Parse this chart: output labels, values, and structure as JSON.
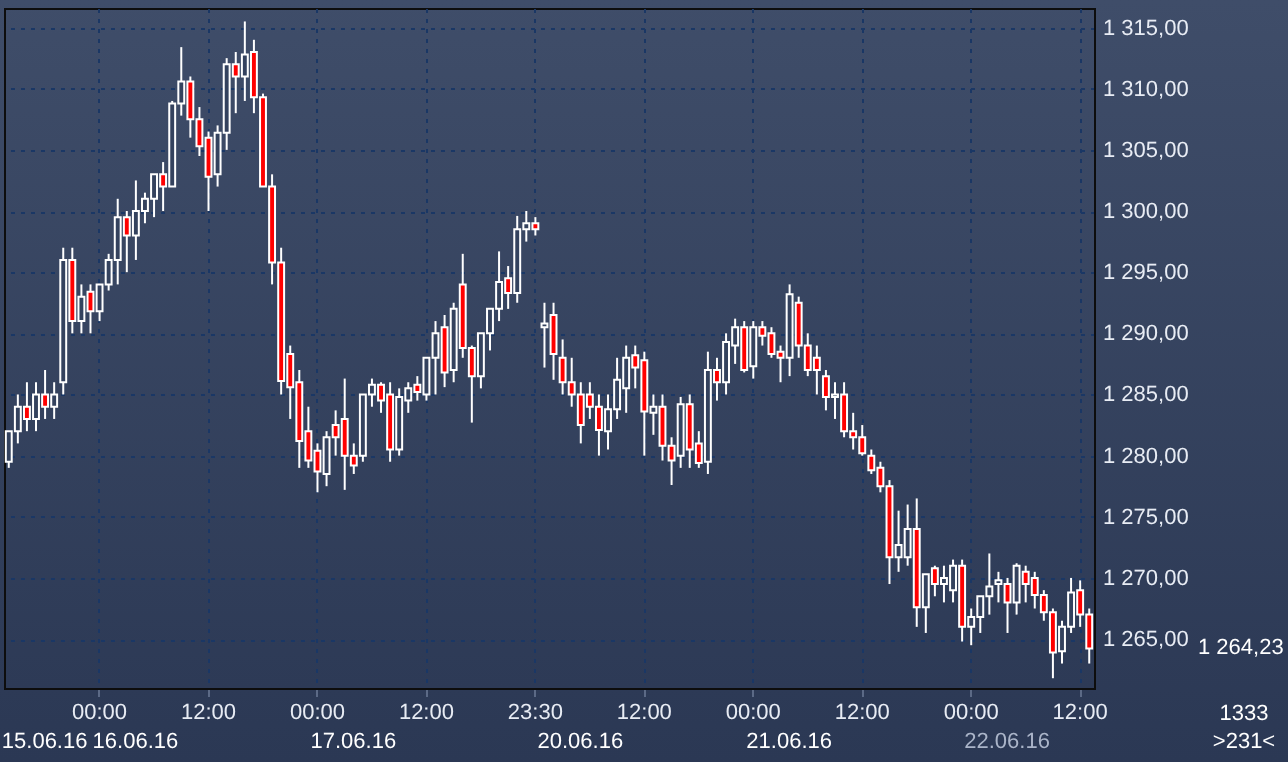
{
  "chart_data": {
    "type": "candlestick",
    "categories": [
      null,
      null,
      null,
      null,
      null,
      null,
      null,
      null,
      null,
      null,
      "00:00",
      null,
      null,
      null,
      null,
      null,
      null,
      null,
      null,
      null,
      null,
      null,
      "12:00",
      null,
      null,
      null,
      null,
      null,
      null,
      null,
      null,
      null,
      null,
      null,
      "00:00",
      null,
      null,
      null,
      null,
      null,
      null,
      null,
      null,
      null,
      null,
      null,
      "12:00",
      null,
      null,
      null,
      null,
      null,
      null,
      null,
      null,
      null,
      null,
      null,
      "23:30",
      null,
      null,
      null,
      null,
      null,
      null,
      null,
      null,
      null,
      null,
      null,
      "12:00",
      null,
      null,
      null,
      null,
      null,
      null,
      null,
      null,
      null,
      null,
      null,
      "00:00",
      null,
      null,
      null,
      null,
      null,
      null,
      null,
      null,
      null,
      null,
      null,
      "12:00",
      null,
      null,
      null,
      null,
      null,
      null,
      null,
      null,
      null,
      null,
      null,
      "00:00",
      null,
      null,
      null,
      null,
      null,
      null,
      null,
      null,
      null,
      null,
      null,
      "12:00",
      null
    ],
    "ohlc": [
      [
        1279.5,
        1282,
        1279,
        1282
      ],
      [
        1282,
        1285,
        1281,
        1284
      ],
      [
        1284,
        1286,
        1282,
        1283
      ],
      [
        1283,
        1286,
        1282,
        1285
      ],
      [
        1285,
        1287,
        1283,
        1284
      ],
      [
        1284,
        1286,
        1283,
        1285
      ],
      [
        1286,
        1297,
        1285,
        1296
      ],
      [
        1296,
        1297,
        1290,
        1291
      ],
      [
        1291,
        1294,
        1290,
        1293
      ],
      [
        1293.4,
        1294,
        1290,
        1291.8
      ],
      [
        1291.8,
        1294,
        1291,
        1294
      ],
      [
        1294,
        1296.5,
        1293.5,
        1296
      ],
      [
        1296,
        1301,
        1294,
        1299.5
      ],
      [
        1299.5,
        1300,
        1295,
        1298
      ],
      [
        1298,
        1302.5,
        1296,
        1300
      ],
      [
        1300,
        1301.5,
        1299,
        1301
      ],
      [
        1301,
        1303,
        1299.5,
        1303
      ],
      [
        1303,
        1304,
        1300,
        1302
      ],
      [
        1302,
        1309,
        1302,
        1308.8
      ],
      [
        1308.8,
        1313.4,
        1307.8,
        1310.6
      ],
      [
        1310.6,
        1311,
        1306,
        1307.5
      ],
      [
        1307.5,
        1308.5,
        1304.5,
        1305.3
      ],
      [
        1306,
        1306.5,
        1300,
        1302.8
      ],
      [
        1303,
        1307,
        1302,
        1306.4
      ],
      [
        1306.4,
        1312.5,
        1305,
        1312
      ],
      [
        1312,
        1313,
        1308,
        1311
      ],
      [
        1311,
        1315.5,
        1309,
        1312.8
      ],
      [
        1313,
        1314,
        1308,
        1309.3
      ],
      [
        1309.3,
        1309.6,
        1302,
        1302
      ],
      [
        1302,
        1303,
        1294,
        1295.8
      ],
      [
        1295.8,
        1297,
        1285,
        1286.1
      ],
      [
        1288.3,
        1289,
        1283,
        1285.6
      ],
      [
        1286,
        1287,
        1279,
        1281.2
      ],
      [
        1282,
        1284,
        1279,
        1279.6
      ],
      [
        1280.4,
        1281,
        1277,
        1278.7
      ],
      [
        1278.5,
        1282,
        1277.5,
        1281.5
      ],
      [
        1282.5,
        1283.7,
        1280,
        1281.5
      ],
      [
        1283,
        1286.3,
        1277.2,
        1280
      ],
      [
        1280,
        1281,
        1278.5,
        1279.2
      ],
      [
        1280,
        1285,
        1279.5,
        1285
      ],
      [
        1285,
        1286.3,
        1284,
        1285.8
      ],
      [
        1285.8,
        1286,
        1283.5,
        1284.5
      ],
      [
        1285,
        1286,
        1279.5,
        1280.5
      ],
      [
        1280.5,
        1285.5,
        1280,
        1284.8
      ],
      [
        1284.5,
        1286,
        1283.5,
        1285.5
      ],
      [
        1285.8,
        1286.5,
        1284.5,
        1285.2
      ],
      [
        1285,
        1288,
        1284.5,
        1288
      ],
      [
        1288,
        1291,
        1285,
        1290
      ],
      [
        1290.5,
        1291.5,
        1285.6,
        1286.8
      ],
      [
        1287,
        1292.5,
        1286,
        1292
      ],
      [
        1294,
        1296.5,
        1288,
        1288.8
      ],
      [
        1288.8,
        1289,
        1282.7,
        1286.5
      ],
      [
        1286.5,
        1290,
        1285.5,
        1290
      ],
      [
        1290,
        1292,
        1288.6,
        1292
      ],
      [
        1292,
        1296.7,
        1291,
        1294.2
      ],
      [
        1294.5,
        1295.5,
        1292,
        1293.3
      ],
      [
        1293.3,
        1299.6,
        1292.5,
        1298.5
      ],
      [
        1298.5,
        1300,
        1297.5,
        1299
      ],
      [
        1299,
        1299.5,
        1298,
        1298.5
      ],
      [
        1290.5,
        1292.5,
        1287.2,
        1290.8
      ],
      [
        1291.5,
        1292.5,
        1286.2,
        1288.3
      ],
      [
        1288,
        1289.5,
        1285,
        1286
      ],
      [
        1286,
        1288,
        1284,
        1285
      ],
      [
        1285,
        1286,
        1281,
        1282.5
      ],
      [
        1285,
        1286,
        1283,
        1284
      ],
      [
        1284,
        1285,
        1280,
        1282.1
      ],
      [
        1282,
        1285,
        1280.5,
        1283.8
      ],
      [
        1283.8,
        1288,
        1283,
        1286.2
      ],
      [
        1285.5,
        1289,
        1283.5,
        1288
      ],
      [
        1288.2,
        1289,
        1285.5,
        1287.2
      ],
      [
        1287.8,
        1288.5,
        1280,
        1283.6
      ],
      [
        1283.5,
        1285,
        1281.7,
        1284
      ],
      [
        1284,
        1285,
        1279.6,
        1280.8
      ],
      [
        1280.8,
        1281.5,
        1277.6,
        1279.6
      ],
      [
        1280,
        1284.8,
        1279,
        1284.2
      ],
      [
        1284.2,
        1285,
        1279,
        1280.5
      ],
      [
        1281,
        1282,
        1279,
        1279.4
      ],
      [
        1279.5,
        1288.5,
        1278.5,
        1287
      ],
      [
        1287,
        1288,
        1284.5,
        1286
      ],
      [
        1286,
        1290,
        1285,
        1289.3
      ],
      [
        1289,
        1291.2,
        1287.5,
        1290.5
      ],
      [
        1290.5,
        1291,
        1286.8,
        1287
      ],
      [
        1287.3,
        1291,
        1286.3,
        1290.5
      ],
      [
        1290.5,
        1291,
        1289,
        1289.8
      ],
      [
        1290,
        1290.5,
        1288,
        1288.3
      ],
      [
        1288.5,
        1289,
        1286,
        1288
      ],
      [
        1288,
        1294,
        1286.5,
        1293.2
      ],
      [
        1292.5,
        1293,
        1288,
        1289
      ],
      [
        1289,
        1290,
        1286.5,
        1287
      ],
      [
        1288,
        1289,
        1285,
        1287
      ],
      [
        1286.5,
        1287,
        1283.7,
        1284.8
      ],
      [
        1284.8,
        1286,
        1283,
        1285
      ],
      [
        1285,
        1286,
        1281.5,
        1282
      ],
      [
        1282,
        1283.5,
        1280.5,
        1281.5
      ],
      [
        1281.5,
        1282.5,
        1280,
        1280.2
      ],
      [
        1280,
        1280.5,
        1278.5,
        1278.8
      ],
      [
        1279,
        1279.5,
        1277,
        1277.5
      ],
      [
        1277.5,
        1278,
        1269.5,
        1271.7
      ],
      [
        1271.7,
        1275.5,
        1270.5,
        1272.7
      ],
      [
        1271.7,
        1276,
        1271,
        1274
      ],
      [
        1274,
        1276.5,
        1266,
        1267.6
      ],
      [
        1267.6,
        1270.3,
        1265.5,
        1270.3
      ],
      [
        1270.8,
        1271,
        1268.5,
        1269.5
      ],
      [
        1269.5,
        1271,
        1268,
        1270
      ],
      [
        1269,
        1271.5,
        1268,
        1271
      ],
      [
        1271,
        1271.5,
        1264.8,
        1266
      ],
      [
        1266,
        1267.5,
        1264.5,
        1266.8
      ],
      [
        1266.8,
        1268.5,
        1265.5,
        1268.5
      ],
      [
        1268.5,
        1272,
        1267,
        1269.3
      ],
      [
        1269.5,
        1270.5,
        1268,
        1269.8
      ],
      [
        1269.5,
        1270,
        1265.5,
        1268
      ],
      [
        1268,
        1271.2,
        1267,
        1271
      ],
      [
        1270.5,
        1271,
        1268,
        1269.5
      ],
      [
        1270,
        1270.5,
        1267.5,
        1268.6
      ],
      [
        1268.6,
        1269,
        1266.5,
        1267.2
      ],
      [
        1267.2,
        1267.5,
        1261.8,
        1263.9
      ],
      [
        1264,
        1266.5,
        1263,
        1266
      ],
      [
        1266,
        1270,
        1265.5,
        1268.8
      ],
      [
        1269,
        1269.8,
        1266,
        1267
      ],
      [
        1267,
        1267.5,
        1263,
        1264.23
      ]
    ],
    "ylim": [
      1261,
      1316.6
    ],
    "yticks": [
      {
        "value": 1265,
        "label": "1 265,00"
      },
      {
        "value": 1270,
        "label": "1 270,00"
      },
      {
        "value": 1275,
        "label": "1 275,00"
      },
      {
        "value": 1280,
        "label": "1 280,00"
      },
      {
        "value": 1285,
        "label": "1 285,00"
      },
      {
        "value": 1290,
        "label": "1 290,00"
      },
      {
        "value": 1295,
        "label": "1 295,00"
      },
      {
        "value": 1300,
        "label": "1 300,00"
      },
      {
        "value": 1305,
        "label": "1 305,00"
      },
      {
        "value": 1310,
        "label": "1 310,00"
      },
      {
        "value": 1315,
        "label": "1 315,00"
      }
    ],
    "grid": true,
    "annotations": [
      "15.06.16",
      "16.06.16",
      "17.06.16",
      "20.06.16",
      "21.06.16",
      "22.06.16",
      "1 264,23",
      "1333",
      ">231<"
    ]
  }
}
